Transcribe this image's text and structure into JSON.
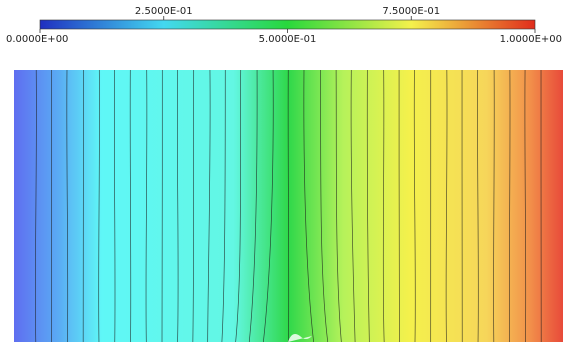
{
  "chart_data": {
    "type": "heatmap",
    "title": "",
    "xlabel": "",
    "ylabel": "",
    "colorbar": {
      "range": [
        0.0,
        1.0
      ],
      "colormap": "rainbow (blue-cyan-green-yellow-red)",
      "ticks": [
        {
          "value": 0.0,
          "label": "0.0000E+00",
          "row": "bottom"
        },
        {
          "value": 0.25,
          "label": "2.5000E-01",
          "row": "top"
        },
        {
          "value": 0.5,
          "label": "5.0000E-01",
          "row": "bottom"
        },
        {
          "value": 0.75,
          "label": "7.5000E-01",
          "row": "top"
        },
        {
          "value": 1.0,
          "label": "1.0000E+00",
          "row": "bottom"
        }
      ]
    },
    "field": {
      "direction": "increases left to right",
      "min": 0.0,
      "max": 1.0,
      "contour_count": 33
    }
  },
  "colors": {
    "blue": "#1f2fc0",
    "cyan": "#5ff7f7",
    "green": "#28d83c",
    "yellow": "#f4f14c",
    "red": "#e02c1c",
    "contour": "#1a1a1a"
  }
}
